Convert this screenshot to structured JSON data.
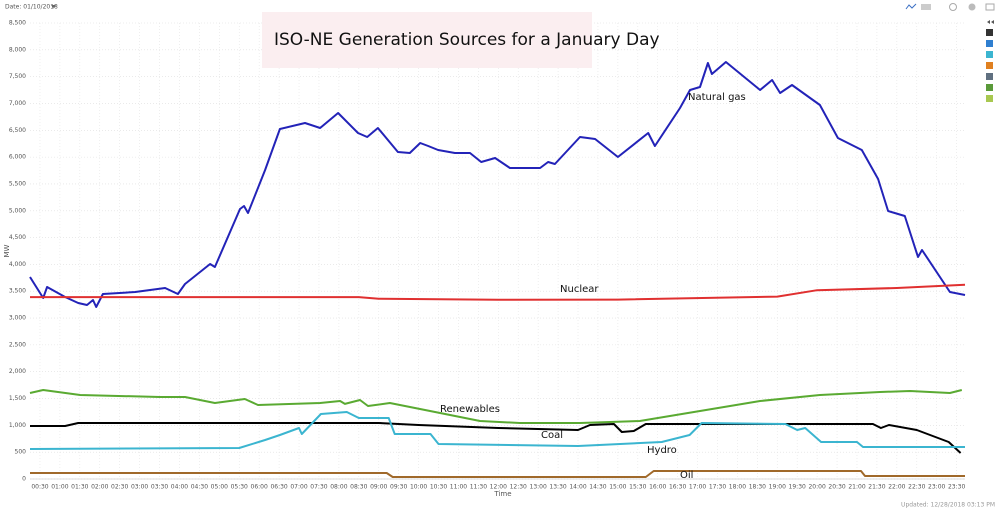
{
  "header": {
    "date": "Date: 01/10/2018",
    "updated": "Updated: 12/28/2018 03:13 PM"
  },
  "chart_data": {
    "type": "line",
    "title": "ISO-NE Generation Sources for a January Day",
    "x_label": "Time",
    "y_label": "MW",
    "xlim": [
      0.25,
      23.71
    ],
    "ylim": [
      0,
      8500
    ],
    "grid": true,
    "yticks": [
      0,
      500,
      {
        "value": 1000,
        "label": "1,000"
      },
      {
        "value": 1500,
        "label": "1,500"
      },
      {
        "value": 2000,
        "label": "2,000"
      },
      {
        "value": 2500,
        "label": "2,500"
      },
      {
        "value": 3000,
        "label": "3,000"
      },
      {
        "value": 3500,
        "label": "3,500"
      },
      {
        "value": 4000,
        "label": "4,000"
      },
      {
        "value": 4500,
        "label": "4,500"
      },
      {
        "value": 5000,
        "label": "5,000"
      },
      {
        "value": 5500,
        "label": "5,500"
      },
      {
        "value": 6000,
        "label": "6,000"
      },
      {
        "value": 6500,
        "label": "6,500"
      },
      {
        "value": 7000,
        "label": "7,000"
      },
      {
        "value": 7500,
        "label": "7,500"
      },
      {
        "value": 8000,
        "label": "8,000"
      },
      {
        "value": 8500,
        "label": "8,500"
      }
    ],
    "xticks": [
      {
        "value": 0.5,
        "label": "00:30"
      },
      {
        "value": 1,
        "label": "01:00"
      },
      {
        "value": 1.5,
        "label": "01:30"
      },
      {
        "value": 2,
        "label": "02:00"
      },
      {
        "value": 2.5,
        "label": "02:30"
      },
      {
        "value": 3,
        "label": "03:00"
      },
      {
        "value": 3.5,
        "label": "03:30"
      },
      {
        "value": 4,
        "label": "04:00"
      },
      {
        "value": 4.5,
        "label": "04:30"
      },
      {
        "value": 5,
        "label": "05:00"
      },
      {
        "value": 5.5,
        "label": "05:30"
      },
      {
        "value": 6,
        "label": "06:00"
      },
      {
        "value": 6.5,
        "label": "06:30"
      },
      {
        "value": 7,
        "label": "07:00"
      },
      {
        "value": 7.5,
        "label": "07:30"
      },
      {
        "value": 8,
        "label": "08:00"
      },
      {
        "value": 8.5,
        "label": "08:30"
      },
      {
        "value": 9,
        "label": "09:00"
      },
      {
        "value": 9.5,
        "label": "09:30"
      },
      {
        "value": 10,
        "label": "10:00"
      },
      {
        "value": 10.5,
        "label": "10:30"
      },
      {
        "value": 11,
        "label": "11:00"
      },
      {
        "value": 11.5,
        "label": "11:30"
      },
      {
        "value": 12,
        "label": "12:00"
      },
      {
        "value": 12.5,
        "label": "12:30"
      },
      {
        "value": 13,
        "label": "13:00"
      },
      {
        "value": 13.5,
        "label": "13:30"
      },
      {
        "value": 14,
        "label": "14:00"
      },
      {
        "value": 14.5,
        "label": "14:30"
      },
      {
        "value": 15,
        "label": "15:00"
      },
      {
        "value": 15.5,
        "label": "15:30"
      },
      {
        "value": 16,
        "label": "16:00"
      },
      {
        "value": 16.5,
        "label": "16:30"
      },
      {
        "value": 17,
        "label": "17:00"
      },
      {
        "value": 17.5,
        "label": "17:30"
      },
      {
        "value": 18,
        "label": "18:00"
      },
      {
        "value": 18.5,
        "label": "18:30"
      },
      {
        "value": 19,
        "label": "19:00"
      },
      {
        "value": 19.5,
        "label": "19:30"
      },
      {
        "value": 20,
        "label": "20:00"
      },
      {
        "value": 20.5,
        "label": "20:30"
      },
      {
        "value": 21,
        "label": "21:00"
      },
      {
        "value": 21.5,
        "label": "21:30"
      },
      {
        "value": 22,
        "label": "22:00"
      },
      {
        "value": 22.5,
        "label": "22:30"
      },
      {
        "value": 23,
        "label": "23:00"
      },
      {
        "value": 23.5,
        "label": "23:30"
      }
    ],
    "series": [
      {
        "name": "Natural gas",
        "color": "#2323b8",
        "x": [
          0.25,
          0.58,
          0.68,
          1.13,
          1.46,
          1.68,
          1.83,
          1.91,
          2.08,
          2.89,
          3.64,
          3.96,
          4.14,
          4.77,
          4.89,
          5.52,
          5.62,
          5.72,
          6.15,
          6.52,
          7.15,
          7.53,
          7.98,
          8.48,
          8.71,
          8.98,
          9.48,
          9.78,
          10.04,
          10.24,
          10.49,
          10.91,
          11.29,
          11.57,
          11.92,
          12.29,
          13.05,
          13.25,
          13.42,
          14.05,
          14.43,
          15.0,
          15.76,
          15.93,
          16.56,
          16.81,
          17.06,
          17.26,
          17.36,
          17.71,
          18.57,
          18.87,
          19.07,
          19.37,
          20.07,
          20.52,
          21.12,
          21.53,
          21.78,
          22.2,
          22.53,
          22.63,
          23.33,
          23.71
        ],
        "values": [
          3765,
          3374,
          3579,
          3392,
          3281,
          3243,
          3337,
          3206,
          3448,
          3486,
          3560,
          3448,
          3635,
          4008,
          3952,
          5033,
          5089,
          4958,
          5760,
          6524,
          6636,
          6543,
          6822,
          6449,
          6375,
          6543,
          6095,
          6077,
          6263,
          6207,
          6133,
          6077,
          6077,
          5909,
          5983,
          5797,
          5797,
          5909,
          5872,
          6375,
          6338,
          6002,
          6449,
          6207,
          6915,
          7251,
          7307,
          7754,
          7549,
          7773,
          7251,
          7437,
          7195,
          7344,
          6972,
          6356,
          6133,
          5592,
          4995,
          4902,
          4138,
          4268,
          3486,
          3430
        ]
      },
      {
        "name": "Nuclear",
        "color": "#e03030",
        "x": [
          0.25,
          8.5,
          9,
          12,
          15,
          19,
          20,
          22,
          23.71
        ],
        "values": [
          3390,
          3390,
          3360,
          3340,
          3345,
          3400,
          3520,
          3560,
          3620
        ]
      },
      {
        "name": "Renewables",
        "color": "#5aaa32",
        "x": [
          0.25,
          0.58,
          1.51,
          3.51,
          4.14,
          4.89,
          5.64,
          5.97,
          7.53,
          8.03,
          8.15,
          8.53,
          8.73,
          9.28,
          10.54,
          11.54,
          12.54,
          14.05,
          15.55,
          17.06,
          18.57,
          20.07,
          21.58,
          22.33,
          23.33,
          23.63
        ],
        "values": [
          1603,
          1659,
          1566,
          1528,
          1528,
          1417,
          1491,
          1379,
          1417,
          1454,
          1400,
          1472,
          1360,
          1417,
          1230,
          1081,
          1044,
          1044,
          1081,
          1268,
          1454,
          1566,
          1622,
          1640,
          1603,
          1659
        ]
      },
      {
        "name": "Coal",
        "color": "#000000",
        "x": [
          0.25,
          1.13,
          1.46,
          9,
          10,
          12,
          14,
          14.3,
          14.9,
          15.1,
          15.4,
          15.7,
          21.4,
          21.6,
          21.8,
          22.5,
          23.3,
          23.6
        ],
        "values": [
          988,
          988,
          1044,
          1044,
          1006,
          951,
          913,
          1006,
          1025,
          876,
          895,
          1025,
          1025,
          951,
          1006,
          913,
          690,
          485
        ]
      },
      {
        "name": "Hydro",
        "color": "#3bb5d0",
        "x": [
          0.25,
          5.5,
          6.15,
          6.52,
          7.0,
          7.07,
          7.55,
          8.2,
          8.5,
          9.25,
          9.4,
          10.3,
          10.5,
          14,
          16.1,
          16.8,
          17.1,
          19.2,
          19.5,
          19.7,
          20.1,
          21,
          21.15,
          23.71
        ],
        "values": [
          559,
          578,
          727,
          820,
          951,
          839,
          1212,
          1249,
          1137,
          1137,
          839,
          839,
          652,
          615,
          690,
          820,
          1044,
          1025,
          913,
          951,
          690,
          690,
          596,
          596
        ]
      },
      {
        "name": "Oil",
        "color": "#a0692a",
        "x": [
          0.25,
          9.2,
          9.35,
          15.7,
          15.9,
          21.1,
          21.2,
          23.71
        ],
        "values": [
          112,
          112,
          37,
          37,
          149,
          149,
          56,
          56
        ]
      }
    ]
  }
}
